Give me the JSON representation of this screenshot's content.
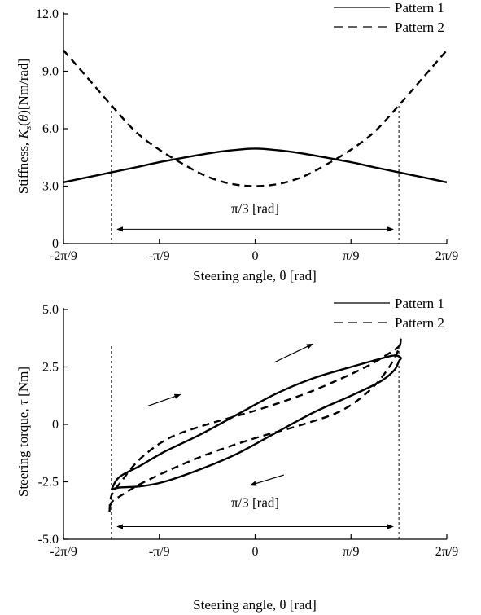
{
  "chart_data": [
    {
      "type": "line",
      "xlabel": "Steering angle, θ [rad]",
      "ylabel": "Stiffness, K_s(θ)[Nm/rad]",
      "x_unit": "pi/9",
      "xlim": [
        -2,
        2
      ],
      "ylim": [
        0,
        12
      ],
      "x_ticks": [
        -2,
        -1,
        0,
        1,
        2
      ],
      "x_tick_labels": [
        "-2π/9",
        "-π/9",
        "0",
        "π/9",
        "2π/9"
      ],
      "y_ticks": [
        0,
        3,
        6,
        9,
        12
      ],
      "y_tick_labels": [
        "0",
        "3.0",
        "6.0",
        "9.0",
        "12.0"
      ],
      "legend": "top-right",
      "series": [
        {
          "name": "Pattern 1",
          "style": "solid",
          "x": [
            -2,
            -1.75,
            -1.5,
            -1.25,
            -1,
            -0.75,
            -0.5,
            -0.25,
            0,
            0.25,
            0.5,
            0.75,
            1,
            1.25,
            1.5,
            1.75,
            2
          ],
          "values": [
            3.2,
            3.46,
            3.72,
            3.98,
            4.25,
            4.48,
            4.7,
            4.87,
            4.96,
            4.87,
            4.7,
            4.48,
            4.25,
            3.98,
            3.72,
            3.46,
            3.2
          ]
        },
        {
          "name": "Pattern 2",
          "style": "dashed",
          "x": [
            -2,
            -1.75,
            -1.5,
            -1.25,
            -1,
            -0.75,
            -0.5,
            -0.25,
            0,
            0.25,
            0.5,
            0.75,
            1,
            1.25,
            1.5,
            1.75,
            2
          ],
          "values": [
            10.1,
            8.66,
            7.22,
            5.86,
            4.9,
            4.15,
            3.5,
            3.12,
            3.0,
            3.12,
            3.5,
            4.15,
            4.9,
            5.86,
            7.22,
            8.66,
            10.1
          ]
        }
      ],
      "annotations": [
        {
          "type": "vline",
          "x": -1.5,
          "style": "dashed"
        },
        {
          "type": "vline",
          "x": 1.5,
          "style": "dashed"
        },
        {
          "type": "double-arrow",
          "x1": -1.44,
          "x2": 1.44,
          "y": 0.75
        },
        {
          "type": "text",
          "text": "π/3 [rad]",
          "x": 0,
          "y": 1.6
        }
      ]
    },
    {
      "type": "line",
      "xlabel": "Steering angle, θ [rad]",
      "ylabel": "Steering torque, τ [Nm]",
      "x_unit": "pi/9",
      "xlim": [
        -2,
        2
      ],
      "ylim": [
        -5,
        5
      ],
      "x_ticks": [
        -2,
        -1,
        0,
        1,
        2
      ],
      "x_tick_labels": [
        "-2π/9",
        "-π/9",
        "0",
        "π/9",
        "2π/9"
      ],
      "y_ticks": [
        -5,
        -2.5,
        0,
        2.5,
        5
      ],
      "y_tick_labels": [
        "-5.0",
        "-2.5",
        "0",
        "2.5",
        "5.0"
      ],
      "legend": "top-right",
      "series": [
        {
          "name": "Pattern 1",
          "style": "solid",
          "x": [
            -1.5,
            -1.42,
            -1.2,
            -0.95,
            -0.6,
            -0.2,
            0.2,
            0.6,
            1.0,
            1.3,
            1.45,
            1.52,
            1.5,
            1.45,
            1.3,
            1.0,
            0.6,
            0.2,
            -0.2,
            -0.6,
            -0.95,
            -1.2,
            -1.42,
            -1.5
          ],
          "values": [
            -2.85,
            -2.3,
            -1.8,
            -1.2,
            -0.5,
            0.4,
            1.3,
            2.0,
            2.5,
            2.85,
            3.0,
            2.9,
            2.75,
            2.35,
            1.85,
            1.25,
            0.5,
            -0.4,
            -1.3,
            -2.0,
            -2.5,
            -2.7,
            -2.75,
            -2.85
          ]
        },
        {
          "name": "Pattern 2",
          "style": "dashed",
          "x": [
            -1.52,
            -1.5,
            -1.4,
            -1.2,
            -0.9,
            -0.5,
            0.0,
            0.5,
            0.9,
            1.2,
            1.4,
            1.5,
            1.52,
            1.5,
            1.4,
            1.2,
            0.9,
            0.5,
            0.0,
            -0.5,
            -0.9,
            -1.2,
            -1.4,
            -1.5,
            -1.52
          ],
          "values": [
            -3.8,
            -3.1,
            -2.5,
            -1.5,
            -0.6,
            0.0,
            0.6,
            1.3,
            2.0,
            2.6,
            3.1,
            3.4,
            3.7,
            3.3,
            2.5,
            1.5,
            0.6,
            0.0,
            -0.6,
            -1.3,
            -2.0,
            -2.6,
            -3.1,
            -3.4,
            -3.8
          ]
        }
      ],
      "annotations": [
        {
          "type": "vline",
          "x": -1.5,
          "style": "dashed"
        },
        {
          "type": "vline",
          "x": 1.5,
          "style": "dashed"
        },
        {
          "type": "double-arrow",
          "x1": -1.44,
          "x2": 1.44,
          "y": -4.45
        },
        {
          "type": "text",
          "text": "π/3 [rad]",
          "x": 0,
          "y": -3.6
        },
        {
          "type": "arrow",
          "x1": 0.2,
          "y1": 2.7,
          "x2": 0.6,
          "y2": 3.5
        },
        {
          "type": "arrow",
          "x1": -1.12,
          "y1": 0.8,
          "x2": -0.78,
          "y2": 1.3
        },
        {
          "type": "arrow",
          "x1": 0.3,
          "y1": -2.2,
          "x2": -0.05,
          "y2": -2.65
        }
      ]
    }
  ]
}
